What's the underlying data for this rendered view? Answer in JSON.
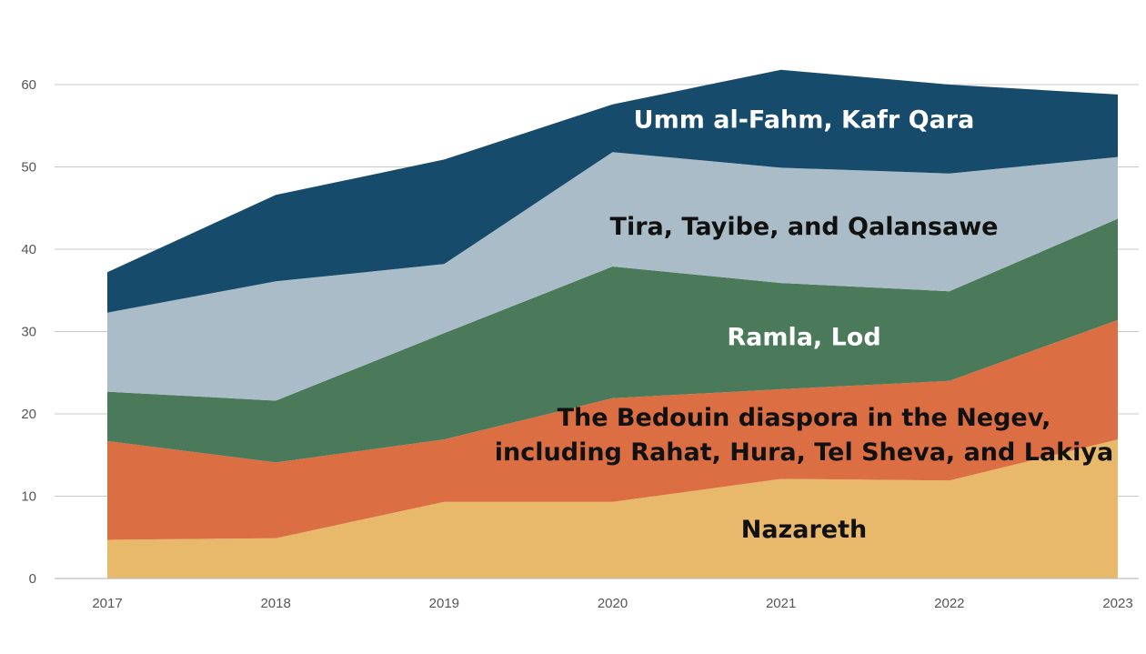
{
  "chart_data": {
    "type": "area",
    "stacked": true,
    "x": [
      "2017",
      "2018",
      "2019",
      "2020",
      "2021",
      "2022",
      "2023"
    ],
    "ylim": [
      0,
      60
    ],
    "yticks": [
      "0",
      "10",
      "20",
      "30",
      "40",
      "50",
      "60"
    ],
    "grid": true,
    "legend": "none (labels placed inside areas)",
    "series": [
      {
        "name": "Nazareth",
        "label_lines": [
          "Nazareth"
        ],
        "label_color": "#111111",
        "color": "#e8b96a",
        "values": [
          4.7,
          4.9,
          9.3,
          9.3,
          12.1,
          11.9,
          16.9
        ]
      },
      {
        "name": "The Bedouin diaspora in the Negev, including Rahat, Hura, Tel Sheva, and Lakiya",
        "label_lines": [
          "The Bedouin diaspora in the Negev,",
          "including Rahat, Hura, Tel Sheva, and Lakiya"
        ],
        "label_color": "#111111",
        "color": "#dc6e43",
        "values": [
          12.0,
          9.2,
          7.6,
          12.6,
          10.9,
          12.1,
          14.5
        ]
      },
      {
        "name": "Ramla, Lod",
        "label_lines": [
          "Ramla, Lod"
        ],
        "label_color": "#ffffff",
        "color": "#4a7a59",
        "values": [
          6.0,
          7.5,
          12.9,
          16.0,
          12.9,
          10.9,
          12.3
        ]
      },
      {
        "name": "Tira, Tayibe, and Qalansawe",
        "label_lines": [
          "Tira, Tayibe, and Qalansawe"
        ],
        "label_color": "#111111",
        "color": "#a9bcc8",
        "values": [
          9.6,
          14.5,
          8.4,
          13.9,
          14.0,
          14.3,
          7.5
        ]
      },
      {
        "name": "Umm al-Fahm, Kafr Qara",
        "label_lines": [
          "Umm al-Fahm, Kafr Qara"
        ],
        "label_color": "#ffffff",
        "color": "#174b6b",
        "values": [
          4.9,
          10.5,
          12.7,
          5.8,
          11.9,
          10.8,
          7.6
        ]
      }
    ]
  }
}
